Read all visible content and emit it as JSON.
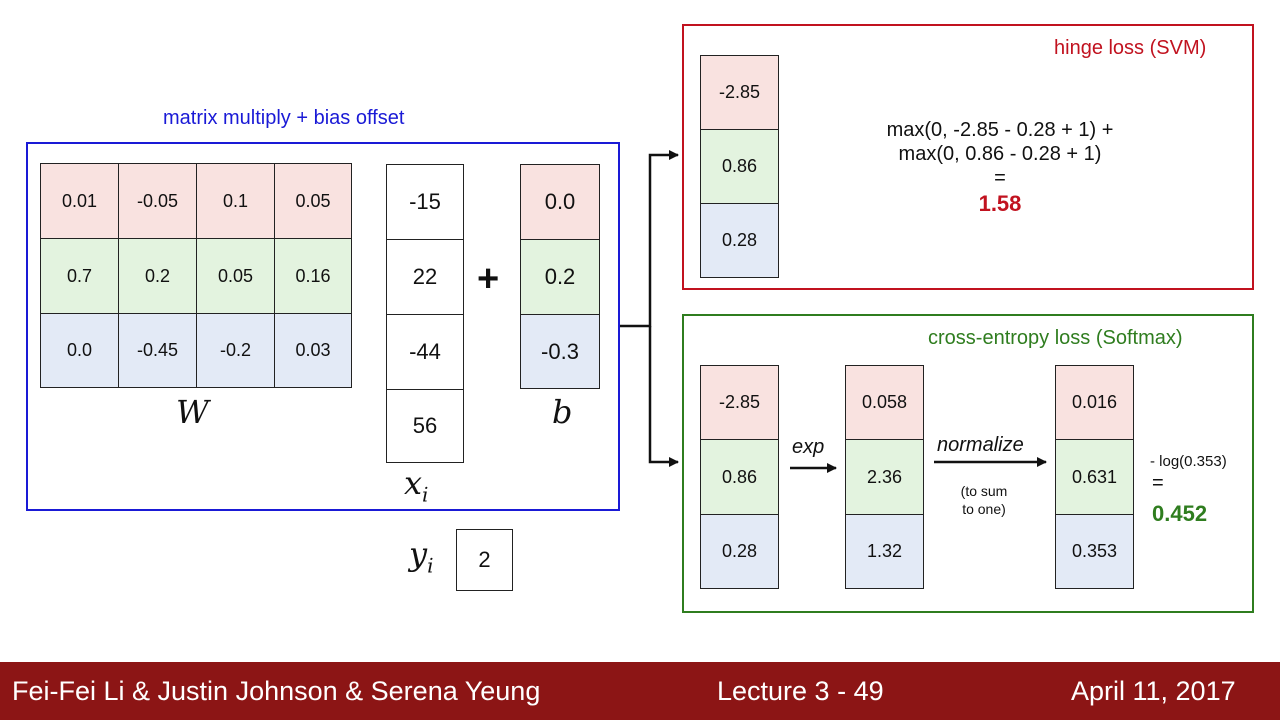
{
  "linear_block": {
    "title": "matrix multiply + bias offset",
    "W": [
      [
        "0.01",
        "-0.05",
        "0.1",
        "0.05"
      ],
      [
        "0.7",
        "0.2",
        "0.05",
        "0.16"
      ],
      [
        "0.0",
        "-0.45",
        "-0.2",
        "0.03"
      ]
    ],
    "W_label": "W",
    "x": [
      "-15",
      "22",
      "-44",
      "56"
    ],
    "x_label": "x",
    "x_sub": "i",
    "plus": "+",
    "b": [
      "0.0",
      "0.2",
      "-0.3"
    ],
    "b_label": "b",
    "y_label": "y",
    "y_sub": "i",
    "y_value": "2"
  },
  "svm": {
    "title": "hinge loss (SVM)",
    "scores": [
      "-2.85",
      "0.86",
      "0.28"
    ],
    "formula_line1": "max(0, -2.85 - 0.28 + 1) +",
    "formula_line2": "max(0, 0.86 - 0.28 + 1)",
    "equals": "=",
    "result": "1.58",
    "result_color": "#c1121f"
  },
  "softmax": {
    "title": "cross-entropy loss (Softmax)",
    "scores": [
      "-2.85",
      "0.86",
      "0.28"
    ],
    "exp_label": "exp",
    "exp_values": [
      "0.058",
      "2.36",
      "1.32"
    ],
    "normalize_label": "normalize",
    "normalize_note_line1": "(to sum",
    "normalize_note_line2": "to one)",
    "probs": [
      "0.016",
      "0.631",
      "0.353"
    ],
    "loss_expr": "- log(0.353)",
    "equals": "=",
    "result": "0.452",
    "result_color": "#2f7d1f"
  },
  "colors": {
    "row_red": "#f9e2e0",
    "row_green": "#e3f3df",
    "row_blue": "#e3eaf6",
    "linear_border": "#1a1ad6",
    "svm_border": "#c1121f",
    "softmax_border": "#2f7d1f",
    "footer_bg": "#8c1515"
  },
  "footer": {
    "authors": "Fei-Fei Li & Justin Johnson & Serena Yeung",
    "lecture": "Lecture 3 -   49",
    "date": "April 11, 2017"
  }
}
